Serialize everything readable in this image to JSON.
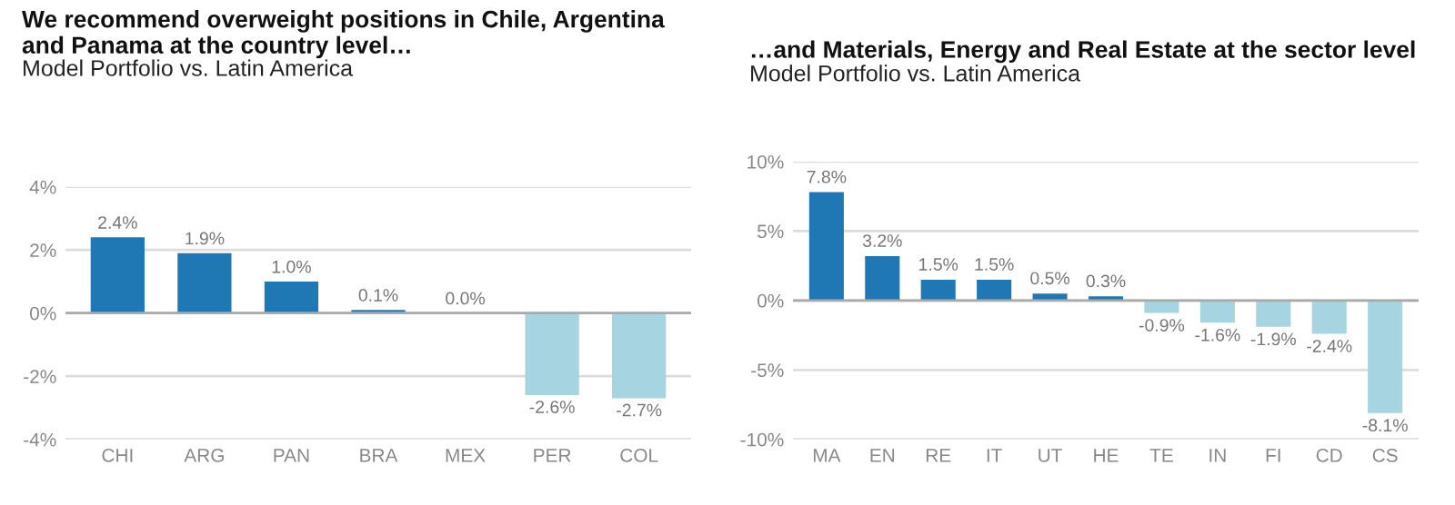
{
  "chart_data": [
    {
      "type": "bar",
      "title": "We recommend overweight positions in Chile, Argentina\nand Panama at the country level…",
      "subtitle": "Model Portfolio vs. Latin America",
      "categories": [
        "CHI",
        "ARG",
        "PAN",
        "BRA",
        "MEX",
        "PER",
        "COL"
      ],
      "values": [
        2.4,
        1.9,
        1.0,
        0.1,
        0.0,
        -2.6,
        -2.7
      ],
      "value_labels": [
        "2.4%",
        "1.9%",
        "1.0%",
        "0.1%",
        "0.0%",
        "-2.6%",
        "-2.7%"
      ],
      "colors": [
        "#1f78b4",
        "#1f78b4",
        "#1f78b4",
        "#1f78b4",
        "#1f78b4",
        "#a6d4e0",
        "#a6d4e0"
      ],
      "ylim": [
        -4,
        4
      ],
      "yticks": [
        {
          "value": -4,
          "label": "-4%"
        },
        {
          "value": -2,
          "label": "-2%"
        },
        {
          "value": 0,
          "label": "0%"
        },
        {
          "value": 2,
          "label": "2%"
        },
        {
          "value": 4,
          "label": "4%"
        }
      ],
      "grid": "y",
      "legend": false
    },
    {
      "type": "bar",
      "title": "…and Materials, Energy and Real Estate at the sector level",
      "subtitle": "Model Portfolio vs. Latin America",
      "categories": [
        "MA",
        "EN",
        "RE",
        "IT",
        "UT",
        "HE",
        "TE",
        "IN",
        "FI",
        "CD",
        "CS"
      ],
      "values": [
        7.8,
        3.2,
        1.5,
        1.5,
        0.5,
        0.3,
        -0.9,
        -1.6,
        -1.9,
        -2.4,
        -8.1
      ],
      "value_labels": [
        "7.8%",
        "3.2%",
        "1.5%",
        "1.5%",
        "0.5%",
        "0.3%",
        "-0.9%",
        "-1.6%",
        "-1.9%",
        "-2.4%",
        "-8.1%"
      ],
      "colors": [
        "#1f78b4",
        "#1f78b4",
        "#1f78b4",
        "#1f78b4",
        "#1f78b4",
        "#1f78b4",
        "#a6d4e0",
        "#a6d4e0",
        "#a6d4e0",
        "#a6d4e0",
        "#a6d4e0"
      ],
      "ylim": [
        -10,
        10
      ],
      "yticks": [
        {
          "value": -10,
          "label": "-10%"
        },
        {
          "value": -5,
          "label": "-5%"
        },
        {
          "value": 0,
          "label": "0%"
        },
        {
          "value": 5,
          "label": "5%"
        },
        {
          "value": 10,
          "label": "10%"
        }
      ],
      "grid": "y",
      "legend": false
    }
  ]
}
